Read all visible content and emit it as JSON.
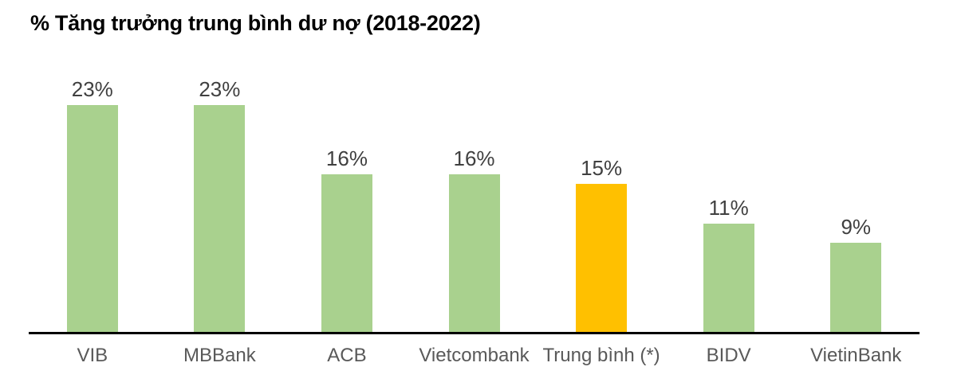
{
  "title": "% Tăng trưởng trung bình dư nợ (2018-2022)",
  "colors": {
    "background": "#FFFFFF",
    "bar_default": "#A9D18E",
    "bar_highlight": "#FFC000",
    "title": "#000000",
    "value_label": "#404040",
    "axis_label": "#595959",
    "axis_line": "#000000"
  },
  "chart_data": {
    "type": "bar",
    "title": "% Tăng trưởng trung bình dư nợ (2018-2022)",
    "categories": [
      "VIB",
      "MBBank",
      "ACB",
      "Vietcombank",
      "Trung bình (*)",
      "BIDV",
      "VietinBank"
    ],
    "values": [
      23,
      23,
      16,
      16,
      15,
      11,
      9
    ],
    "value_labels": [
      "23%",
      "23%",
      "16%",
      "16%",
      "15%",
      "11%",
      "9%"
    ],
    "unit": "%",
    "highlighted_category": "Trung bình (*)",
    "highlight_reason": "average bar shown in orange, banks in green",
    "xlabel": "",
    "ylabel": "",
    "ylim": [
      0,
      25
    ],
    "grid": false,
    "legend": false,
    "value_labels_position": "above-bars",
    "baseline_axis": "x"
  }
}
